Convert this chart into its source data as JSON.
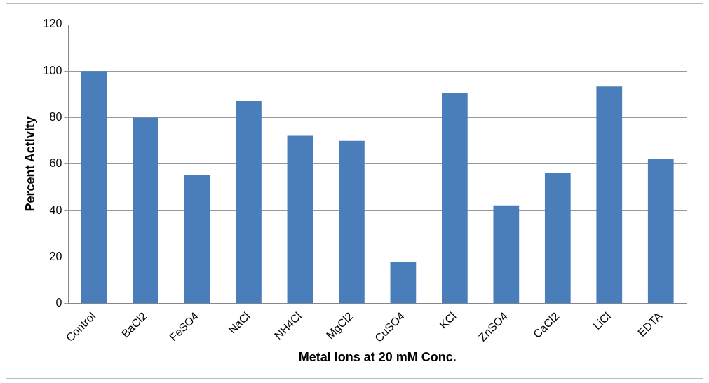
{
  "chart_data": {
    "type": "bar",
    "xlabel": "Metal Ions at 20 mM Conc.",
    "ylabel": "Percent Activity",
    "categories": [
      "Control",
      "BaCl2",
      "FeSO4",
      "NaCl",
      "NH4Cl",
      "MgCl2",
      "CuSO4",
      "KCl",
      "ZnSO4",
      "CaCl2",
      "LiCl",
      "EDTA"
    ],
    "values": [
      100,
      80,
      55.4,
      87.1,
      72.2,
      70,
      17.8,
      90.5,
      42.2,
      56.3,
      93.4,
      62.1
    ],
    "color": "#4a7ebb",
    "ylim": [
      0,
      120
    ],
    "yticks": [
      0,
      20,
      40,
      60,
      80,
      100,
      120
    ],
    "grid": "y",
    "legend": false
  }
}
